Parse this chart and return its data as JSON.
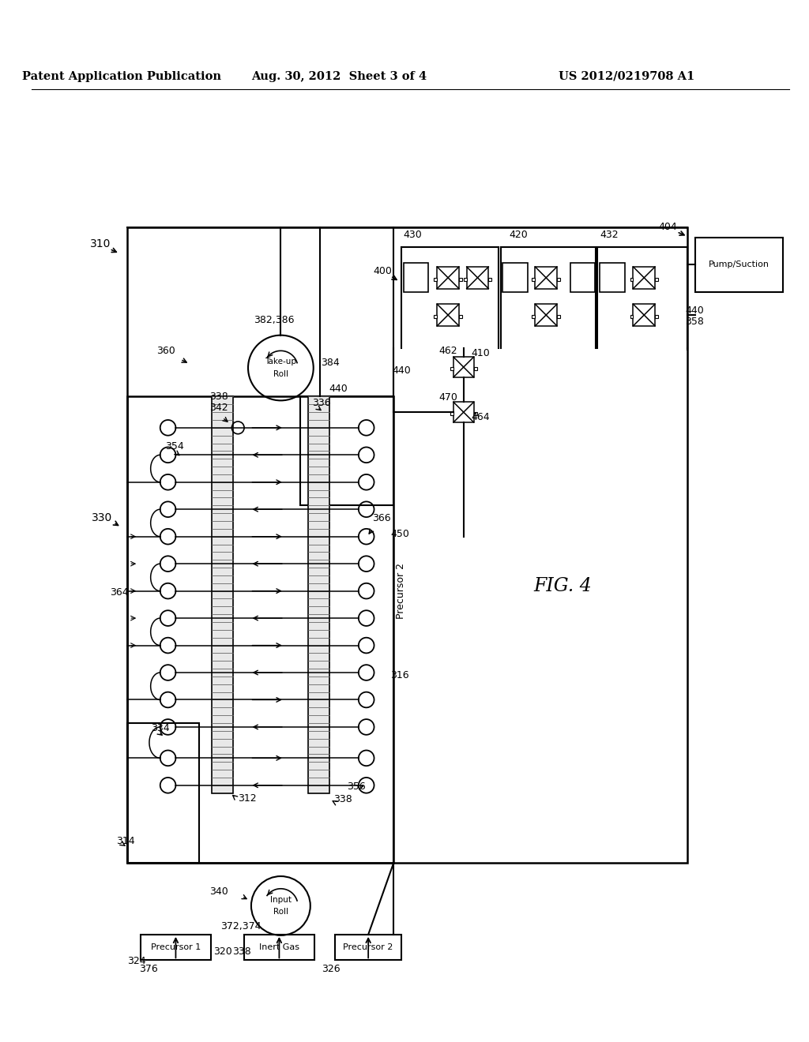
{
  "title_left": "Patent Application Publication",
  "title_mid": "Aug. 30, 2012  Sheet 3 of 4",
  "title_right": "US 2012/0219708 A1",
  "fig_label": "FIG. 4",
  "bg_color": "#ffffff",
  "text_color": "#000000",
  "line_color": "#000000"
}
